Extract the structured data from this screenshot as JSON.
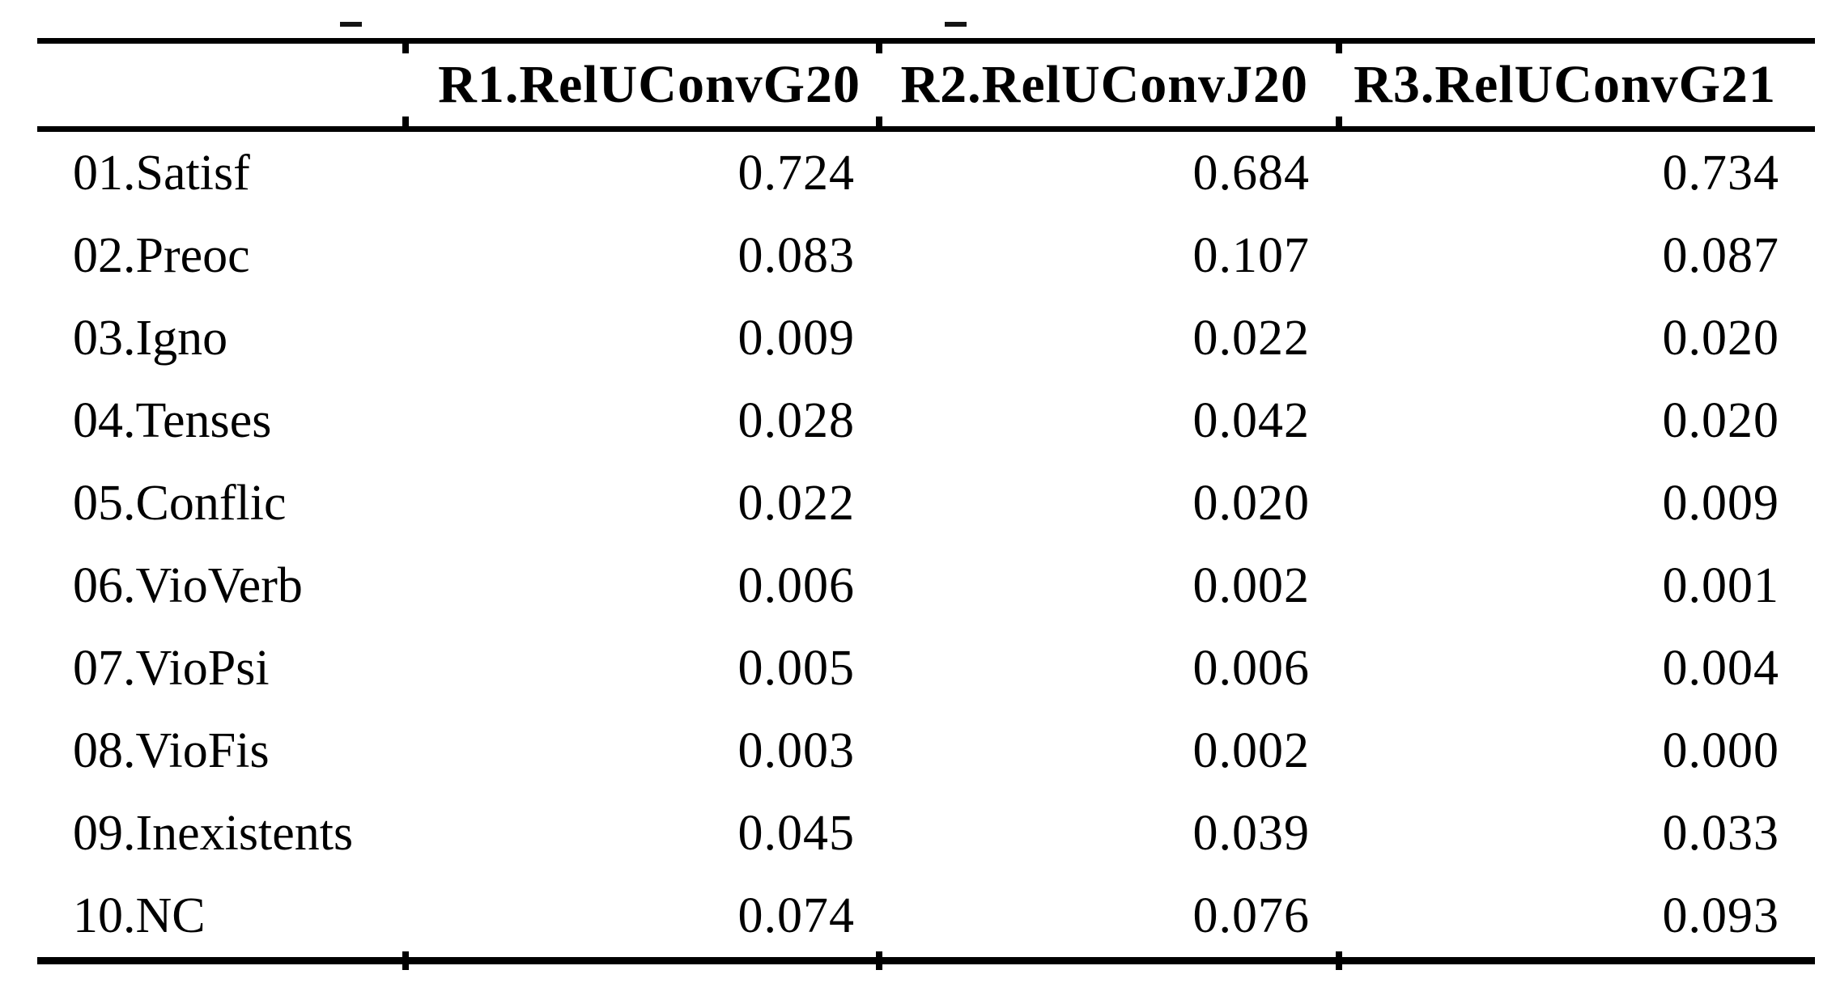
{
  "table": {
    "columns": [
      "R1.RelUConvG20",
      "R2.RelUConvJ20",
      "R3.RelUConvG21"
    ],
    "rows": [
      {
        "label": "01.Satisf",
        "values": [
          "0.724",
          "0.684",
          "0.734"
        ]
      },
      {
        "label": "02.Preoc",
        "values": [
          "0.083",
          "0.107",
          "0.087"
        ]
      },
      {
        "label": "03.Igno",
        "values": [
          "0.009",
          "0.022",
          "0.020"
        ]
      },
      {
        "label": "04.Tenses",
        "values": [
          "0.028",
          "0.042",
          "0.020"
        ]
      },
      {
        "label": "05.Conflic",
        "values": [
          "0.022",
          "0.020",
          "0.009"
        ]
      },
      {
        "label": "06.VioVerb",
        "values": [
          "0.006",
          "0.002",
          "0.001"
        ]
      },
      {
        "label": "07.VioPsi",
        "values": [
          "0.005",
          "0.006",
          "0.004"
        ]
      },
      {
        "label": "08.VioFis",
        "values": [
          "0.003",
          "0.002",
          "0.000"
        ]
      },
      {
        "label": "09.Inexistents",
        "values": [
          "0.045",
          "0.039",
          "0.033"
        ]
      },
      {
        "label": "10.NC",
        "values": [
          "0.074",
          "0.076",
          "0.093"
        ]
      }
    ]
  },
  "chart_data": {
    "type": "table",
    "title": "",
    "columns": [
      "",
      "R1.RelUConvG20",
      "R2.RelUConvJ20",
      "R3.RelUConvG21"
    ],
    "rows": [
      [
        "01.Satisf",
        0.724,
        0.684,
        0.734
      ],
      [
        "02.Preoc",
        0.083,
        0.107,
        0.087
      ],
      [
        "03.Igno",
        0.009,
        0.022,
        0.02
      ],
      [
        "04.Tenses",
        0.028,
        0.042,
        0.02
      ],
      [
        "05.Conflic",
        0.022,
        0.02,
        0.009
      ],
      [
        "06.VioVerb",
        0.006,
        0.002,
        0.001
      ],
      [
        "07.VioPsi",
        0.005,
        0.006,
        0.004
      ],
      [
        "08.VioFis",
        0.003,
        0.002,
        0.0
      ],
      [
        "09.Inexistents",
        0.045,
        0.039,
        0.033
      ],
      [
        "10.NC",
        0.074,
        0.076,
        0.093
      ]
    ]
  }
}
